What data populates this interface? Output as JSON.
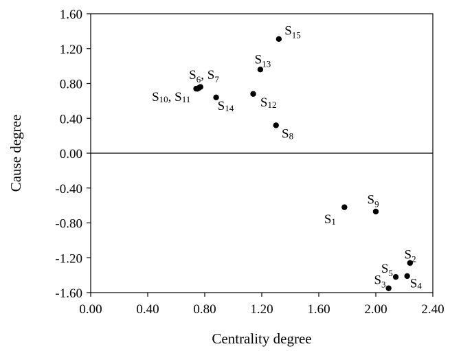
{
  "chart_data": {
    "type": "scatter",
    "title": "",
    "xlabel": "Centrality degree",
    "ylabel": "Cause degree",
    "xlim": [
      0.0,
      2.4
    ],
    "ylim": [
      -1.6,
      1.6
    ],
    "x_ticks": [
      0.0,
      0.4,
      0.8,
      1.2,
      1.6,
      2.0,
      2.4
    ],
    "x_tick_labels": [
      "0.00",
      "0.40",
      "0.80",
      "1.20",
      "1.60",
      "2.00",
      "2.40"
    ],
    "y_ticks": [
      1.6,
      1.2,
      0.8,
      0.4,
      0.0,
      -0.4,
      -0.8,
      -1.2,
      -1.6
    ],
    "y_tick_labels": [
      "1.60",
      "1.20",
      "0.80",
      "0.40",
      "0.00",
      "-0.40",
      "-0.80",
      "-1.20",
      "-1.60"
    ],
    "grid": false,
    "zero_line": true,
    "marker_color": "#000000",
    "points": [
      {
        "x": 1.78,
        "y": -0.62
      },
      {
        "x": 2.24,
        "y": -1.26
      },
      {
        "x": 2.09,
        "y": -1.55
      },
      {
        "x": 2.22,
        "y": -1.41
      },
      {
        "x": 2.14,
        "y": -1.42
      },
      {
        "x": 0.77,
        "y": 0.76
      },
      {
        "x": 0.76,
        "y": 0.75
      },
      {
        "x": 1.3,
        "y": 0.32
      },
      {
        "x": 2.0,
        "y": -0.67
      },
      {
        "x": 0.74,
        "y": 0.74
      },
      {
        "x": 0.75,
        "y": 0.74
      },
      {
        "x": 1.14,
        "y": 0.68
      },
      {
        "x": 1.19,
        "y": 0.96
      },
      {
        "x": 0.88,
        "y": 0.64
      },
      {
        "x": 1.32,
        "y": 1.31
      }
    ],
    "labels": [
      {
        "base": "S",
        "sub": "1",
        "x": 1.72,
        "y": -0.7,
        "anchor": "end",
        "baseline": "hanging"
      },
      {
        "base": "S",
        "sub": "2",
        "x": 2.2,
        "y": -1.21,
        "anchor": "start",
        "baseline": "auto"
      },
      {
        "base": "S",
        "sub": "3",
        "x": 2.07,
        "y": -1.5,
        "anchor": "end",
        "baseline": "auto"
      },
      {
        "base": "S",
        "sub": "4",
        "x": 2.24,
        "y": -1.44,
        "anchor": "start",
        "baseline": "hanging"
      },
      {
        "base": "S",
        "sub": "5",
        "x": 2.12,
        "y": -1.37,
        "anchor": "end",
        "baseline": "auto"
      },
      {
        "base": "S",
        "sub": "6",
        "s2": "S",
        "sub2": "7",
        "sep": ", ",
        "x": 0.69,
        "y": 0.85,
        "anchor": "start",
        "baseline": "auto"
      },
      {
        "base": "S",
        "sub": "8",
        "x": 1.34,
        "y": 0.28,
        "anchor": "start",
        "baseline": "hanging"
      },
      {
        "base": "S",
        "sub": "9",
        "x": 1.94,
        "y": -0.58,
        "anchor": "start",
        "baseline": "auto"
      },
      {
        "base": "S",
        "sub": "10",
        "s2": "S",
        "sub2": "11",
        "sep": ", ",
        "x": 0.7,
        "y": 0.7,
        "anchor": "end",
        "baseline": "hanging"
      },
      {
        "base": "S",
        "sub": "12",
        "x": 1.19,
        "y": 0.64,
        "anchor": "start",
        "baseline": "hanging"
      },
      {
        "base": "S",
        "sub": "13",
        "x": 1.15,
        "y": 1.03,
        "anchor": "start",
        "baseline": "auto"
      },
      {
        "base": "S",
        "sub": "14",
        "x": 0.89,
        "y": 0.6,
        "anchor": "start",
        "baseline": "hanging"
      },
      {
        "base": "S",
        "sub": "15",
        "x": 1.36,
        "y": 1.36,
        "anchor": "start",
        "baseline": "auto"
      }
    ]
  }
}
